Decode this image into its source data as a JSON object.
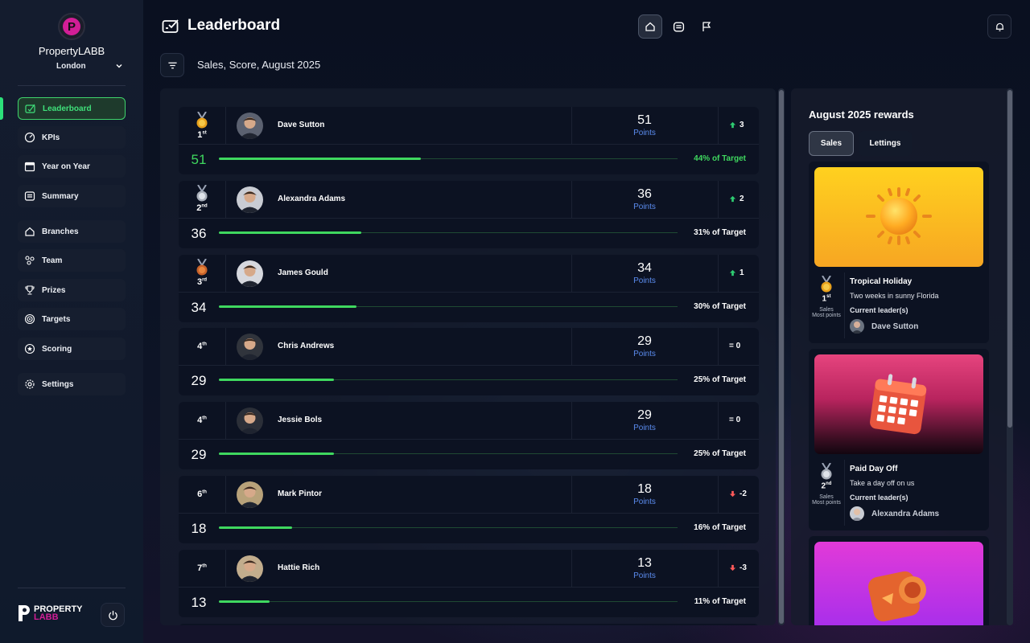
{
  "brand": {
    "name": "PropertyLABB",
    "city": "London",
    "footer_line1": "PROPERTY",
    "footer_line2": "LABB"
  },
  "nav": [
    {
      "label": "Leaderboard",
      "icon": "leaderboard-icon",
      "active": true
    },
    {
      "label": "KPIs",
      "icon": "gauge-icon"
    },
    {
      "label": "Year on Year",
      "icon": "calendar-icon"
    },
    {
      "label": "Summary",
      "icon": "summary-icon"
    },
    {
      "label": "Branches",
      "icon": "home-icon"
    },
    {
      "label": "Team",
      "icon": "team-icon"
    },
    {
      "label": "Prizes",
      "icon": "trophy-icon"
    },
    {
      "label": "Targets",
      "icon": "target-icon"
    },
    {
      "label": "Scoring",
      "icon": "star-icon"
    },
    {
      "label": "Settings",
      "icon": "gear-icon"
    }
  ],
  "header": {
    "title": "Leaderboard",
    "filter_label": "Sales, Score, August 2025"
  },
  "colors": {
    "accent_green": "#3fd85f",
    "points_blue": "#5b8cf0",
    "up": "#2ecc71",
    "down": "#ff5a5a",
    "gold": "#e8a11c",
    "silver": "#b9bfc9",
    "bronze": "#d9742b"
  },
  "leaderboard": [
    {
      "rank": "1",
      "suffix": "st",
      "medal": "gold",
      "name": "Dave Sutton",
      "points": "51",
      "points_label": "Points",
      "change_dir": "up",
      "change": "3",
      "score": "51",
      "score_green": true,
      "target_pct": 44,
      "target_text": "44% of Target"
    },
    {
      "rank": "2",
      "suffix": "nd",
      "medal": "silver",
      "name": "Alexandra Adams",
      "points": "36",
      "points_label": "Points",
      "change_dir": "up",
      "change": "2",
      "score": "36",
      "target_pct": 31,
      "target_text": "31% of Target"
    },
    {
      "rank": "3",
      "suffix": "rd",
      "medal": "bronze",
      "name": "James Gould",
      "points": "34",
      "points_label": "Points",
      "change_dir": "up",
      "change": "1",
      "score": "34",
      "target_pct": 30,
      "target_text": "30% of Target"
    },
    {
      "rank": "4",
      "suffix": "th",
      "medal": "",
      "name": "Chris Andrews",
      "points": "29",
      "points_label": "Points",
      "change_dir": "same",
      "change": "= 0",
      "score": "29",
      "target_pct": 25,
      "target_text": "25% of Target"
    },
    {
      "rank": "4",
      "suffix": "th",
      "medal": "",
      "name": "Jessie Bols",
      "points": "29",
      "points_label": "Points",
      "change_dir": "same",
      "change": "= 0",
      "score": "29",
      "target_pct": 25,
      "target_text": "25% of Target"
    },
    {
      "rank": "6",
      "suffix": "th",
      "medal": "",
      "name": "Mark Pintor",
      "points": "18",
      "points_label": "Points",
      "change_dir": "down",
      "change": "-2",
      "score": "18",
      "target_pct": 16,
      "target_text": "16% of Target"
    },
    {
      "rank": "7",
      "suffix": "th",
      "medal": "",
      "name": "Hattie Rich",
      "points": "13",
      "points_label": "Points",
      "change_dir": "down",
      "change": "-3",
      "score": "13",
      "target_pct": 11,
      "target_text": "11% of Target"
    }
  ],
  "rewards": {
    "title": "August 2025 rewards",
    "tabs": [
      "Sales",
      "Lettings"
    ],
    "items": [
      {
        "image": "sun-icon",
        "name": "Tropical Holiday",
        "desc": "Two weeks in sunny Florida",
        "rank": "1",
        "suffix": "st",
        "medal": "gold",
        "sub1": "Sales",
        "sub2": "Most points",
        "leader_label": "Current leader(s)",
        "leader": "Dave Sutton"
      },
      {
        "image": "calendar-icon",
        "name": "Paid Day Off",
        "desc": "Take a day off on us",
        "rank": "2",
        "suffix": "nd",
        "medal": "silver",
        "sub1": "Sales",
        "sub2": "Most points",
        "leader_label": "Current leader(s)",
        "leader": "Alexandra Adams"
      },
      {
        "image": "camera-icon"
      }
    ]
  }
}
